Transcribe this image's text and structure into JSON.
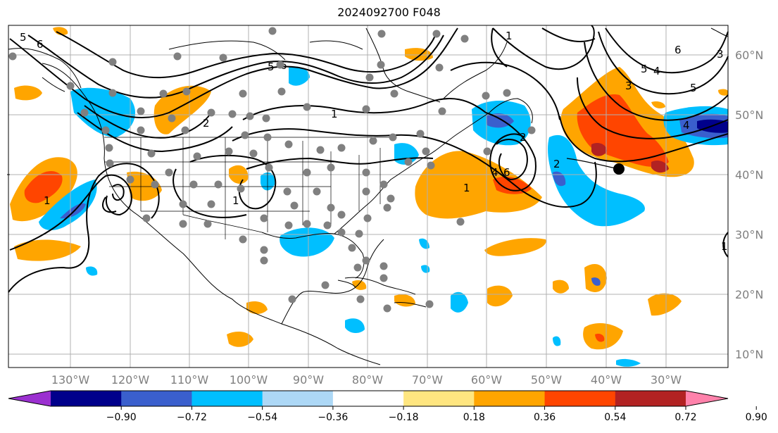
{
  "title": "2024092700 F048",
  "lon_labels": [
    "130°W",
    "120°W",
    "110°W",
    "100°W",
    "90°W",
    "80°W",
    "70°W",
    "60°W",
    "50°W",
    "40°W",
    "30°W"
  ],
  "lat_labels": [
    "60°N",
    "50°N",
    "40°N",
    "30°N",
    "20°N",
    "10°N"
  ],
  "colorbar": {
    "ticks": [
      "−0.90",
      "−0.72",
      "−0.54",
      "−0.36",
      "−0.18",
      "0.18",
      "0.36",
      "0.54",
      "0.72",
      "0.90"
    ],
    "colors": [
      "#9b30d0",
      "#00008b",
      "#3a5fcd",
      "#00bfff",
      "#add8f6",
      "#ffffff",
      "#ffe680",
      "#ffa500",
      "#ff4500",
      "#b22222",
      "#ff82ab"
    ],
    "extend": "both"
  },
  "contour_labels": [
    "5",
    "6",
    "5",
    "6",
    "5",
    "4",
    "1",
    "2",
    "1",
    "1",
    "1",
    "1",
    "2",
    "4",
    "6",
    "1",
    "2",
    "3",
    "4",
    "5",
    "6",
    "3"
  ],
  "marker": {
    "lon": "38.5°W",
    "lat": "41°N"
  },
  "grid": true,
  "gray_dots_color": "#808080",
  "contour_color": "#000000"
}
